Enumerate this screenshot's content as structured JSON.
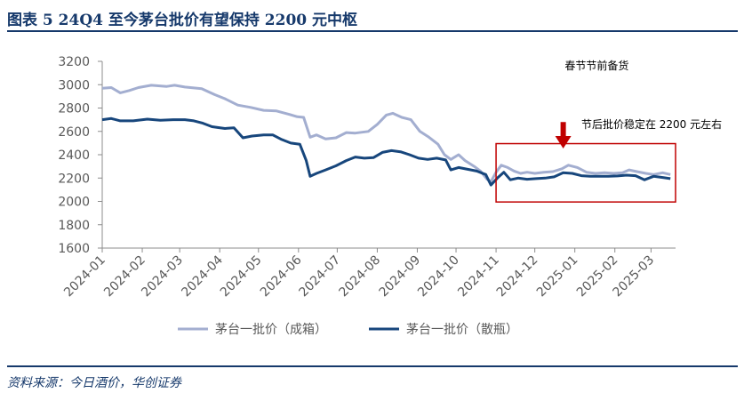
{
  "figure": {
    "title": "图表 5   24Q4 至今茅台批价有望保持 2200 元中枢",
    "source": "资料来源：今日酒价，华创证券"
  },
  "colors": {
    "light_series": "#a3aed0",
    "dark_series": "#17467c",
    "highlight_box": "#c00000",
    "arrow": "#c00000",
    "title": "#16396b"
  },
  "chart_data": {
    "type": "line",
    "title": "",
    "xlabel": "",
    "ylabel": "",
    "ylim": [
      1600,
      3200
    ],
    "yticks": [
      1600,
      1800,
      2000,
      2200,
      2400,
      2600,
      2800,
      3000,
      3200
    ],
    "xlim": [
      "2024-01-01",
      "2025-03-20"
    ],
    "xticks": [
      "2024-01",
      "2024-02",
      "2024-03",
      "2024-04",
      "2024-05",
      "2024-06",
      "2024-07",
      "2024-08",
      "2024-09",
      "2024-10",
      "2024-11",
      "2024-12",
      "2025-01",
      "2025-02",
      "2025-03"
    ],
    "grid": false,
    "legend_position": "bottom",
    "series": [
      {
        "name": "茅台一批价（成箱）",
        "color_key": "light_series",
        "points": [
          [
            "2024-01-01",
            2970
          ],
          [
            "2024-01-08",
            2975
          ],
          [
            "2024-01-15",
            2930
          ],
          [
            "2024-01-22",
            2950
          ],
          [
            "2024-01-29",
            2975
          ],
          [
            "2024-02-08",
            2995
          ],
          [
            "2024-02-20",
            2985
          ],
          [
            "2024-02-26",
            2995
          ],
          [
            "2024-03-05",
            2980
          ],
          [
            "2024-03-18",
            2965
          ],
          [
            "2024-03-28",
            2915
          ],
          [
            "2024-04-05",
            2880
          ],
          [
            "2024-04-15",
            2825
          ],
          [
            "2024-04-25",
            2805
          ],
          [
            "2024-05-05",
            2780
          ],
          [
            "2024-05-15",
            2775
          ],
          [
            "2024-05-25",
            2745
          ],
          [
            "2024-05-31",
            2725
          ],
          [
            "2024-06-05",
            2720
          ],
          [
            "2024-06-10",
            2550
          ],
          [
            "2024-06-15",
            2570
          ],
          [
            "2024-06-22",
            2535
          ],
          [
            "2024-06-30",
            2545
          ],
          [
            "2024-07-08",
            2590
          ],
          [
            "2024-07-15",
            2585
          ],
          [
            "2024-07-25",
            2600
          ],
          [
            "2024-08-01",
            2660
          ],
          [
            "2024-08-08",
            2740
          ],
          [
            "2024-08-13",
            2755
          ],
          [
            "2024-08-20",
            2720
          ],
          [
            "2024-08-27",
            2700
          ],
          [
            "2024-09-03",
            2600
          ],
          [
            "2024-09-10",
            2550
          ],
          [
            "2024-09-17",
            2490
          ],
          [
            "2024-09-22",
            2400
          ],
          [
            "2024-09-27",
            2360
          ],
          [
            "2024-10-03",
            2400
          ],
          [
            "2024-10-08",
            2350
          ],
          [
            "2024-10-15",
            2300
          ],
          [
            "2024-10-20",
            2260
          ],
          [
            "2024-10-25",
            2190
          ],
          [
            "2024-10-28",
            2170
          ],
          [
            "2024-11-01",
            2250
          ],
          [
            "2024-11-05",
            2310
          ],
          [
            "2024-11-10",
            2290
          ],
          [
            "2024-11-15",
            2260
          ],
          [
            "2024-11-20",
            2240
          ],
          [
            "2024-11-25",
            2250
          ],
          [
            "2024-12-01",
            2240
          ],
          [
            "2024-12-08",
            2250
          ],
          [
            "2024-12-15",
            2255
          ],
          [
            "2024-12-22",
            2280
          ],
          [
            "2024-12-27",
            2310
          ],
          [
            "2025-01-03",
            2290
          ],
          [
            "2025-01-10",
            2250
          ],
          [
            "2025-01-17",
            2240
          ],
          [
            "2025-01-24",
            2245
          ],
          [
            "2025-01-31",
            2240
          ],
          [
            "2025-02-07",
            2245
          ],
          [
            "2025-02-12",
            2270
          ],
          [
            "2025-02-18",
            2255
          ],
          [
            "2025-02-25",
            2240
          ],
          [
            "2025-03-03",
            2230
          ],
          [
            "2025-03-10",
            2245
          ],
          [
            "2025-03-16",
            2230
          ]
        ]
      },
      {
        "name": "茅台一批价（散瓶）",
        "color_key": "dark_series",
        "points": [
          [
            "2024-01-01",
            2700
          ],
          [
            "2024-01-08",
            2710
          ],
          [
            "2024-01-15",
            2690
          ],
          [
            "2024-01-25",
            2690
          ],
          [
            "2024-02-05",
            2705
          ],
          [
            "2024-02-15",
            2695
          ],
          [
            "2024-02-25",
            2700
          ],
          [
            "2024-03-05",
            2700
          ],
          [
            "2024-03-12",
            2690
          ],
          [
            "2024-03-19",
            2670
          ],
          [
            "2024-03-26",
            2640
          ],
          [
            "2024-04-05",
            2625
          ],
          [
            "2024-04-12",
            2630
          ],
          [
            "2024-04-19",
            2545
          ],
          [
            "2024-04-26",
            2560
          ],
          [
            "2024-05-05",
            2570
          ],
          [
            "2024-05-12",
            2570
          ],
          [
            "2024-05-19",
            2530
          ],
          [
            "2024-05-26",
            2500
          ],
          [
            "2024-06-02",
            2490
          ],
          [
            "2024-06-07",
            2350
          ],
          [
            "2024-06-10",
            2215
          ],
          [
            "2024-06-15",
            2240
          ],
          [
            "2024-06-22",
            2270
          ],
          [
            "2024-06-30",
            2305
          ],
          [
            "2024-07-08",
            2350
          ],
          [
            "2024-07-15",
            2380
          ],
          [
            "2024-07-22",
            2370
          ],
          [
            "2024-07-29",
            2375
          ],
          [
            "2024-08-05",
            2420
          ],
          [
            "2024-08-12",
            2435
          ],
          [
            "2024-08-19",
            2425
          ],
          [
            "2024-08-26",
            2400
          ],
          [
            "2024-09-02",
            2370
          ],
          [
            "2024-09-09",
            2360
          ],
          [
            "2024-09-16",
            2370
          ],
          [
            "2024-09-23",
            2355
          ],
          [
            "2024-09-27",
            2270
          ],
          [
            "2024-10-03",
            2290
          ],
          [
            "2024-10-10",
            2275
          ],
          [
            "2024-10-17",
            2260
          ],
          [
            "2024-10-24",
            2230
          ],
          [
            "2024-10-28",
            2140
          ],
          [
            "2024-11-02",
            2200
          ],
          [
            "2024-11-07",
            2250
          ],
          [
            "2024-11-12",
            2185
          ],
          [
            "2024-11-18",
            2200
          ],
          [
            "2024-11-25",
            2190
          ],
          [
            "2024-12-02",
            2195
          ],
          [
            "2024-12-09",
            2200
          ],
          [
            "2024-12-16",
            2210
          ],
          [
            "2024-12-23",
            2245
          ],
          [
            "2024-12-30",
            2240
          ],
          [
            "2025-01-06",
            2220
          ],
          [
            "2025-01-13",
            2215
          ],
          [
            "2025-01-20",
            2215
          ],
          [
            "2025-01-27",
            2215
          ],
          [
            "2025-02-03",
            2218
          ],
          [
            "2025-02-10",
            2225
          ],
          [
            "2025-02-17",
            2220
          ],
          [
            "2025-02-24",
            2185
          ],
          [
            "2025-03-03",
            2215
          ],
          [
            "2025-03-10",
            2205
          ],
          [
            "2025-03-16",
            2195
          ]
        ]
      }
    ],
    "annotations": [
      {
        "text": "春节节前备货",
        "anchor": [
          "2025-01-18",
          3130
        ]
      },
      {
        "text": "节后批价稳定在 2200 元左右",
        "anchor": [
          "2025-01-06",
          2630
        ]
      }
    ],
    "highlight_range": {
      "x": [
        "2024-11-01",
        "2025-03-20"
      ],
      "y": [
        1995,
        2495
      ]
    }
  }
}
